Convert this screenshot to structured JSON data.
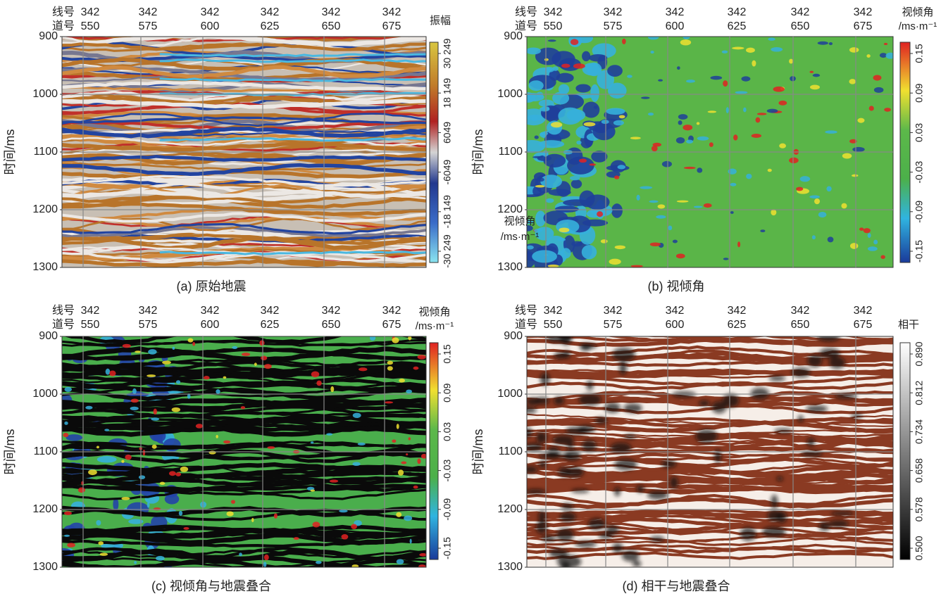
{
  "panels": [
    {
      "caption": "(a) 原始地震",
      "line_label": "线号",
      "trace_label": "道号",
      "lines": [
        342,
        342,
        342,
        342,
        342,
        342
      ],
      "traces": [
        550,
        575,
        600,
        625,
        650,
        675
      ],
      "y_label": "时间/ms",
      "yticks": [
        900,
        1000,
        1100,
        1200,
        1300
      ],
      "colorbar": {
        "title": [
          "振幅"
        ],
        "ticks": [
          "30 249",
          "18 149",
          "6049",
          "-6049",
          "-18 149",
          "-30 249"
        ]
      }
    },
    {
      "caption": "(b) 视倾角",
      "line_label": "线号",
      "trace_label": "道号",
      "lines": [
        342,
        342,
        342,
        342,
        342,
        342
      ],
      "traces": [
        550,
        575,
        600,
        625,
        650,
        675
      ],
      "y_label": "时间/ms",
      "yticks": [
        900,
        1000,
        1100,
        1200,
        1300
      ],
      "colorbar": {
        "title": [
          "视倾角",
          "/ms·m⁻¹"
        ],
        "ticks": [
          "0.15",
          "0.09",
          "0.03",
          "-0.03",
          "-0.09",
          "-0.15"
        ]
      },
      "overlay_label": [
        "视倾角",
        "/ms·m⁻¹"
      ]
    },
    {
      "caption": "(c) 视倾角与地震叠合",
      "line_label": "线号",
      "trace_label": "道号",
      "lines": [
        342,
        342,
        342,
        342,
        342,
        342
      ],
      "traces": [
        550,
        575,
        600,
        625,
        650,
        675
      ],
      "y_label": "时间/ms",
      "yticks": [
        900,
        1000,
        1100,
        1200,
        1300
      ],
      "colorbar": {
        "title": [
          "视倾角",
          "/ms·m⁻¹"
        ],
        "ticks": [
          "0.15",
          "0.09",
          "0.03",
          "-0.03",
          "-0.09",
          "-0.15"
        ]
      }
    },
    {
      "caption": "(d) 相干与地震叠合",
      "line_label": "线号",
      "trace_label": "道号",
      "lines": [
        342,
        342,
        342,
        342,
        342,
        342
      ],
      "traces": [
        550,
        575,
        600,
        625,
        650,
        675
      ],
      "y_label": "时间/ms",
      "yticks": [
        900,
        1000,
        1100,
        1200,
        1300
      ],
      "colorbar": {
        "title": [
          "相干"
        ],
        "ticks": [
          "0.890",
          "0.812",
          "0.734",
          "0.658",
          "0.578",
          "0.500"
        ]
      }
    }
  ]
}
